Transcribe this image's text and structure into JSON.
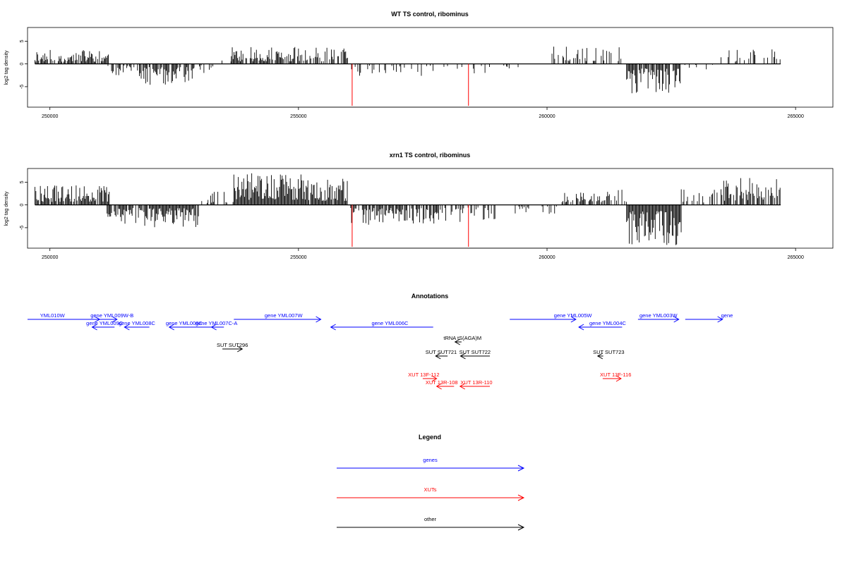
{
  "colors": {
    "genes": "#0000ff",
    "xuts": "#ff0000",
    "other": "#000000",
    "axis": "#000000"
  },
  "chart_data": [
    {
      "type": "bar",
      "title": "WT TS control, ribominus",
      "ylabel": "log2 tag density",
      "xlim": [
        249550,
        265750
      ],
      "ylim": [
        -9.5,
        8
      ],
      "xticks": [
        250000,
        255000,
        260000,
        265000
      ],
      "yticks": [
        5,
        0,
        -5
      ],
      "ytick_labels": [
        "5",
        "0",
        "-5"
      ],
      "data_span": [
        249700,
        264700
      ],
      "profile_seed": 11,
      "regions": [
        {
          "x0": 249700,
          "x1": 251200,
          "strand": "+",
          "max": 3.2,
          "density": 0.75
        },
        {
          "x0": 251150,
          "x1": 251800,
          "strand": "-",
          "max": 2.5,
          "density": 0.45
        },
        {
          "x0": 251800,
          "x1": 252900,
          "strand": "-",
          "max": 4.6,
          "density": 0.85
        },
        {
          "x0": 252900,
          "x1": 253300,
          "strand": "-",
          "max": 2.0,
          "density": 0.4
        },
        {
          "x0": 253300,
          "x1": 253650,
          "strand": "+",
          "max": 1.0,
          "density": 0.2
        },
        {
          "x0": 253650,
          "x1": 255050,
          "strand": "+",
          "max": 3.8,
          "density": 0.85
        },
        {
          "x0": 255050,
          "x1": 256000,
          "strand": "+",
          "max": 3.6,
          "density": 0.7
        },
        {
          "x0": 256050,
          "x1": 257800,
          "strand": "-",
          "max": 2.6,
          "density": 0.3
        },
        {
          "x0": 257800,
          "x1": 258500,
          "strand": "-",
          "max": 2.6,
          "density": 0.25
        },
        {
          "x0": 258500,
          "x1": 259800,
          "strand": "-",
          "max": 2.4,
          "density": 0.15
        },
        {
          "x0": 260100,
          "x1": 261500,
          "strand": "+",
          "max": 4.0,
          "density": 0.45
        },
        {
          "x0": 261600,
          "x1": 262700,
          "strand": "-",
          "max": 6.5,
          "density": 0.9
        },
        {
          "x0": 262700,
          "x1": 263500,
          "strand": "-",
          "max": 1.2,
          "density": 0.1
        },
        {
          "x0": 263500,
          "x1": 264700,
          "strand": "+",
          "max": 3.2,
          "density": 0.35
        }
      ],
      "spikes": [
        {
          "x": 256080,
          "y": -9.2
        },
        {
          "x": 258420,
          "y": -9.2
        }
      ]
    },
    {
      "type": "bar",
      "title": "xrn1 TS control, ribominus",
      "ylabel": "log2 tag density",
      "xlim": [
        249550,
        265750
      ],
      "ylim": [
        -9.5,
        8
      ],
      "xticks": [
        250000,
        255000,
        260000,
        265000
      ],
      "yticks": [
        5,
        0,
        -5
      ],
      "ytick_labels": [
        "5",
        "0",
        "-5"
      ],
      "data_span": [
        249700,
        264700
      ],
      "profile_seed": 29,
      "regions": [
        {
          "x0": 249700,
          "x1": 251200,
          "strand": "+",
          "max": 4.5,
          "density": 0.9
        },
        {
          "x0": 251150,
          "x1": 251800,
          "strand": "-",
          "max": 4.2,
          "density": 0.65
        },
        {
          "x0": 251800,
          "x1": 253000,
          "strand": "-",
          "max": 5.0,
          "density": 0.95
        },
        {
          "x0": 253000,
          "x1": 253700,
          "strand": "+",
          "max": 3.0,
          "density": 0.3
        },
        {
          "x0": 253700,
          "x1": 255100,
          "strand": "+",
          "max": 7.5,
          "density": 1.0
        },
        {
          "x0": 255100,
          "x1": 256000,
          "strand": "+",
          "max": 6.0,
          "density": 0.95
        },
        {
          "x0": 256050,
          "x1": 257800,
          "strand": "-",
          "max": 4.4,
          "density": 0.75
        },
        {
          "x0": 257800,
          "x1": 259000,
          "strand": "-",
          "max": 3.8,
          "density": 0.4
        },
        {
          "x0": 259000,
          "x1": 260300,
          "strand": "-",
          "max": 2.2,
          "density": 0.15
        },
        {
          "x0": 260300,
          "x1": 261600,
          "strand": "+",
          "max": 4.0,
          "density": 0.65
        },
        {
          "x0": 261600,
          "x1": 262700,
          "strand": "-",
          "max": 9.0,
          "density": 1.0
        },
        {
          "x0": 262700,
          "x1": 263500,
          "strand": "+",
          "max": 3.5,
          "density": 0.4
        },
        {
          "x0": 263500,
          "x1": 264700,
          "strand": "+",
          "max": 6.0,
          "density": 0.6
        }
      ],
      "spikes": [
        {
          "x": 256080,
          "y": -9.2
        },
        {
          "x": 258420,
          "y": -9.2
        }
      ]
    }
  ],
  "annotations": {
    "title": "Annotations",
    "xlim": [
      249550,
      265750
    ],
    "features": [
      {
        "label": "YML010W",
        "start": 249550,
        "end": 251000,
        "strand": "+",
        "row": 0,
        "color": "#0000ff",
        "label_x": 250050
      },
      {
        "label": "gene YML009W-B",
        "start": 250900,
        "end": 251350,
        "strand": "+",
        "row": 0,
        "color": "#0000ff",
        "label_x": 251250
      },
      {
        "label": "gene YML009C",
        "start": 250850,
        "end": 251300,
        "strand": "-",
        "row": 1,
        "color": "#0000ff",
        "label_x": 251100
      },
      {
        "label": "gene YML008C",
        "start": 251500,
        "end": 252000,
        "strand": "-",
        "row": 1,
        "color": "#0000ff",
        "label_x": 251750
      },
      {
        "label": "gene YML008C",
        "start": 252400,
        "end": 253250,
        "strand": "-",
        "row": 1,
        "color": "#0000ff",
        "label_x": 252700
      },
      {
        "label": "gene YML007C-A",
        "start": 253250,
        "end": 253500,
        "strand": "-",
        "row": 1,
        "color": "#0000ff",
        "label_x": 253350
      },
      {
        "label": "gene YML007W",
        "start": 253700,
        "end": 255450,
        "strand": "+",
        "row": 0,
        "color": "#0000ff",
        "label_x": 254700
      },
      {
        "label": "gene YML006C",
        "start": 255650,
        "end": 257710,
        "strand": "-",
        "row": 1,
        "color": "#0000ff",
        "label_x": 256840
      },
      {
        "label": "gene YML005W",
        "start": 259250,
        "end": 260580,
        "strand": "+",
        "row": 0,
        "color": "#0000ff",
        "label_x": 260520
      },
      {
        "label": "gene YML004C",
        "start": 260640,
        "end": 261510,
        "strand": "-",
        "row": 1,
        "color": "#0000ff",
        "label_x": 261220
      },
      {
        "label": "gene YML003W",
        "start": 261830,
        "end": 262650,
        "strand": "+",
        "row": 0,
        "color": "#0000ff",
        "label_x": 262240
      },
      {
        "label": "gene",
        "start": 262780,
        "end": 263530,
        "strand": "+",
        "row": 0,
        "color": "#0000ff",
        "label_x": 263620
      },
      {
        "label": "tRNA tS(AGA)M",
        "start": 258150,
        "end": 258280,
        "strand": "-",
        "row": 2,
        "color": "#000000",
        "label_x": 258300
      },
      {
        "label": "SUT SUT296",
        "start": 253470,
        "end": 253870,
        "strand": "+",
        "row": 3,
        "color": "#000000",
        "label_x": 253670
      },
      {
        "label": "SUT SUT721",
        "start": 257760,
        "end": 258000,
        "strand": "-",
        "row": 4,
        "color": "#000000",
        "label_x": 257870
      },
      {
        "label": "SUT SUT722",
        "start": 258260,
        "end": 258850,
        "strand": "-",
        "row": 4,
        "color": "#000000",
        "label_x": 258550
      },
      {
        "label": "SUT SUT723",
        "start": 261020,
        "end": 261130,
        "strand": "-",
        "row": 4,
        "color": "#000000",
        "label_x": 261240
      },
      {
        "label": "XUT 13F-112",
        "start": 257500,
        "end": 257780,
        "strand": "+",
        "row": 5,
        "color": "#ff0000",
        "label_x": 257520
      },
      {
        "label": "XUT 13R-108",
        "start": 257780,
        "end": 258130,
        "strand": "-",
        "row": 6,
        "color": "#ff0000",
        "label_x": 257880
      },
      {
        "label": "XUT 13R-110",
        "start": 258250,
        "end": 258850,
        "strand": "-",
        "row": 6,
        "color": "#ff0000",
        "label_x": 258580
      },
      {
        "label": "XUT 13F-116",
        "start": 261120,
        "end": 261490,
        "strand": "+",
        "row": 5,
        "color": "#ff0000",
        "label_x": 261380
      }
    ]
  },
  "legend": {
    "title": "Legend",
    "items": [
      {
        "label": "genes",
        "color": "#0000ff"
      },
      {
        "label": "XUTs",
        "color": "#ff0000"
      },
      {
        "label": "other",
        "color": "#000000"
      }
    ]
  }
}
